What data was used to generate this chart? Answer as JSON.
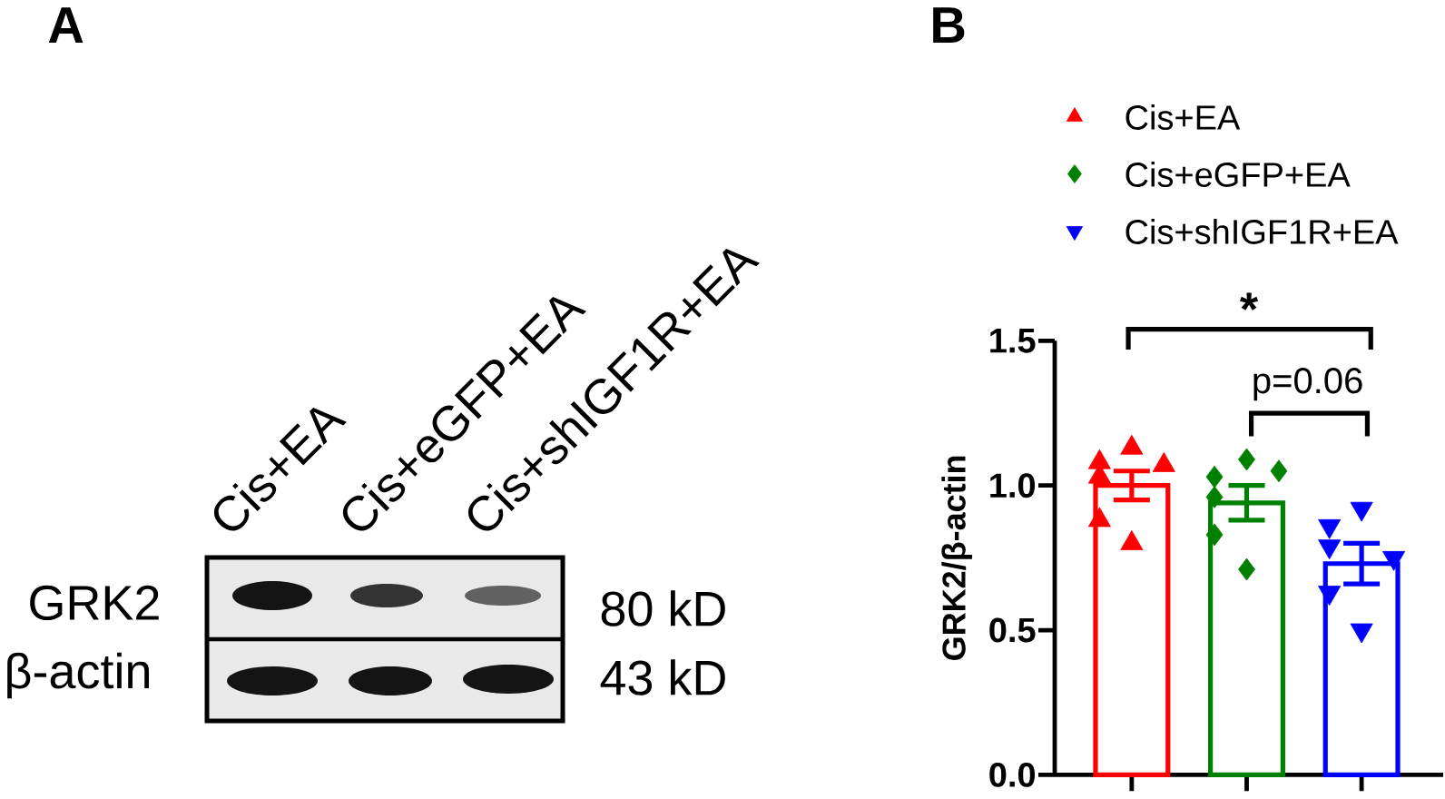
{
  "chart_data": [
    {
      "type": "other",
      "title": "A",
      "annotations": [
        "Cis+EA",
        "Cis+eGFP+EA",
        "Cis+shIGF1R+EA",
        "GRK2",
        "β-actin",
        "80 kD",
        "43 kD"
      ]
    },
    {
      "type": "bar",
      "title": "B",
      "ylabel": "GRK2/β-actin",
      "categories": [
        null,
        null,
        null
      ],
      "ylim": [
        0,
        1.5
      ],
      "yticks": [
        {
          "value": 0,
          "label": "0.0"
        },
        0.5,
        {
          "value": 1,
          "label": "1.0"
        },
        1.5
      ],
      "tick_labels": "y",
      "legend": "top",
      "annotations": [
        "*",
        "p=0.06"
      ],
      "series": [
        {
          "type": "bar",
          "colors": [
            "#ff0000",
            "#008000",
            "#0000ff"
          ],
          "values": [
            1.0,
            0.94,
            0.73
          ],
          "errors": [
            0.05,
            0.06,
            0.07
          ]
        },
        {
          "type": "scatter",
          "name": "Cis+EA",
          "color": "#ff0000",
          "marker": "triangle",
          "values": [
            1.08,
            null,
            null
          ]
        },
        {
          "type": "scatter",
          "color": "#ff0000",
          "marker": "triangle",
          "values": [
            1.13,
            null,
            null
          ]
        },
        {
          "type": "scatter",
          "color": "#ff0000",
          "marker": "triangle",
          "values": [
            1.07,
            null,
            null
          ]
        },
        {
          "type": "scatter",
          "color": "#ff0000",
          "marker": "triangle",
          "values": [
            1.03,
            null,
            null
          ]
        },
        {
          "type": "scatter",
          "color": "#ff0000",
          "marker": "triangle",
          "values": [
            0.88,
            null,
            null
          ]
        },
        {
          "type": "scatter",
          "color": "#ff0000",
          "marker": "triangle",
          "values": [
            0.8,
            null,
            null
          ]
        },
        {
          "type": "scatter",
          "name": "Cis+eGFP+EA",
          "color": "#008000",
          "marker": "diamond",
          "values": [
            null,
            1.03,
            null
          ]
        },
        {
          "type": "scatter",
          "color": "#008000",
          "marker": "diamond",
          "values": [
            null,
            1.09,
            null
          ]
        },
        {
          "type": "scatter",
          "color": "#008000",
          "marker": "diamond",
          "values": [
            null,
            1.05,
            null
          ]
        },
        {
          "type": "scatter",
          "color": "#008000",
          "marker": "diamond",
          "values": [
            null,
            0.96,
            null
          ]
        },
        {
          "type": "scatter",
          "color": "#008000",
          "marker": "diamond",
          "values": [
            null,
            0.83,
            null
          ]
        },
        {
          "type": "scatter",
          "color": "#008000",
          "marker": "diamond",
          "values": [
            null,
            0.71,
            null
          ]
        },
        {
          "type": "scatter",
          "name": "Cis+shIGF1R+EA",
          "color": "#0000ff",
          "marker": "triangle-down",
          "values": [
            null,
            null,
            0.86
          ]
        },
        {
          "type": "scatter",
          "color": "#0000ff",
          "marker": "triangle-down",
          "values": [
            null,
            null,
            0.92
          ]
        },
        {
          "type": "scatter",
          "color": "#0000ff",
          "marker": "triangle-down",
          "values": [
            null,
            null,
            0.79
          ]
        },
        {
          "type": "scatter",
          "color": "#0000ff",
          "marker": "triangle-down",
          "values": [
            null,
            null,
            0.75
          ]
        },
        {
          "type": "scatter",
          "color": "#0000ff",
          "marker": "triangle-down",
          "values": [
            null,
            null,
            0.63
          ]
        },
        {
          "type": "scatter",
          "color": "#0000ff",
          "marker": "triangle-down",
          "values": [
            null,
            null,
            0.5
          ]
        }
      ]
    }
  ]
}
